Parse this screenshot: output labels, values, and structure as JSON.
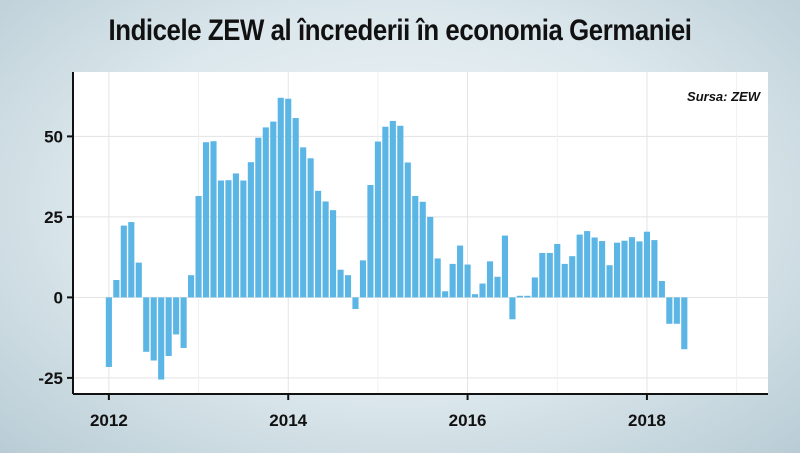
{
  "title": "Indicele ZEW al încrederii în economia Germaniei",
  "source": "Sursa: ZEW",
  "colors": {
    "bar": "#5bb6e6",
    "plot_bg": "#ffffff",
    "axis": "#111111",
    "grid": "#e3e3e3"
  },
  "chart_data": {
    "type": "bar",
    "title": "Indicele ZEW al încrederii în economia Germaniei",
    "xlabel": "",
    "ylabel": "",
    "ylim": [
      -30,
      70
    ],
    "yticks": [
      -25,
      0,
      25,
      50
    ],
    "ytick_labels": [
      "-25",
      "0",
      "25",
      "50"
    ],
    "xticks": [
      2012,
      2014,
      2016,
      2018
    ],
    "xtick_labels": [
      "2012",
      "2014",
      "2016",
      "2018"
    ],
    "xlim": [
      2011.6,
      2019.35
    ],
    "grid": true,
    "start": {
      "year": 2012,
      "month": 1
    },
    "values": [
      -21.6,
      5.4,
      22.3,
      23.4,
      10.8,
      -16.9,
      -19.6,
      -25.5,
      -18.2,
      -11.5,
      -15.7,
      6.9,
      31.5,
      48.2,
      48.5,
      36.3,
      36.4,
      38.5,
      36.3,
      42.0,
      49.6,
      52.8,
      54.6,
      62.0,
      61.7,
      55.7,
      46.6,
      43.2,
      33.1,
      29.8,
      27.1,
      8.6,
      6.9,
      -3.6,
      11.5,
      34.9,
      48.4,
      53.0,
      54.8,
      53.3,
      41.9,
      31.5,
      29.7,
      25.0,
      12.1,
      1.9,
      10.4,
      16.1,
      10.2,
      1.0,
      4.3,
      11.2,
      6.4,
      19.2,
      -6.8,
      0.5,
      0.5,
      6.2,
      13.8,
      13.8,
      16.6,
      10.4,
      12.8,
      19.5,
      20.6,
      18.6,
      17.5,
      10.0,
      17.0,
      17.6,
      18.7,
      17.4,
      20.4,
      17.8,
      5.1,
      -8.2,
      -8.2,
      -16.1
    ]
  }
}
